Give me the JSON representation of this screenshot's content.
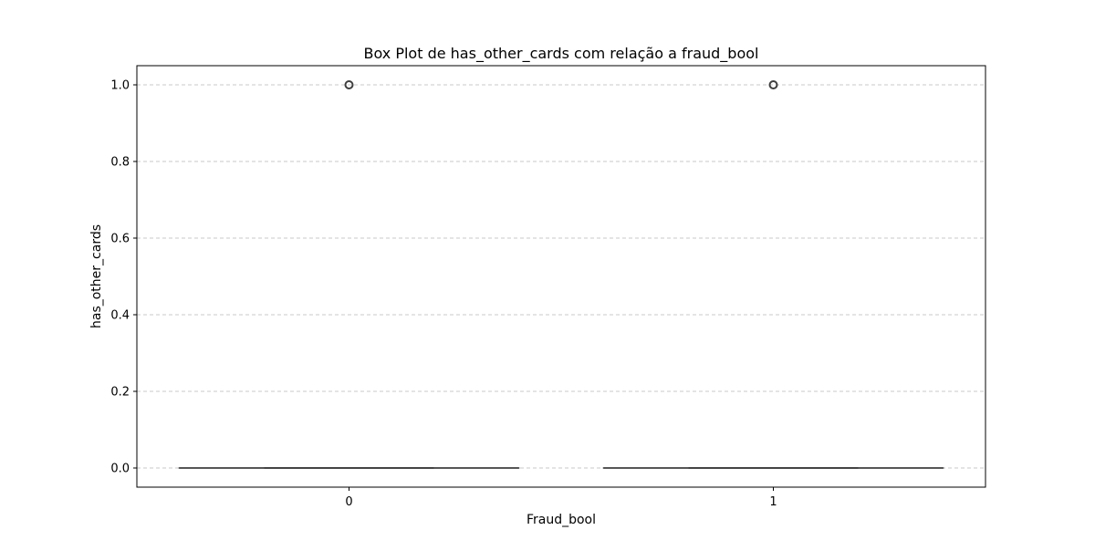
{
  "chart_data": {
    "type": "box",
    "title": "Box Plot de has_other_cards com relação a fraud_bool",
    "xlabel": "Fraud_bool",
    "ylabel": "has_other_cards",
    "categories": [
      "0",
      "1"
    ],
    "ylim": [
      -0.05,
      1.05
    ],
    "yticks": [
      0.0,
      0.2,
      0.4,
      0.6,
      0.8,
      1.0
    ],
    "ytick_labels": [
      "0.0",
      "0.2",
      "0.4",
      "0.6",
      "0.8",
      "1.0"
    ],
    "grid": {
      "y": true,
      "x": false,
      "style": "dashed"
    },
    "boxes": [
      {
        "category": "0",
        "whisker_low": 0.0,
        "q1": 0.0,
        "median": 0.0,
        "q3": 0.0,
        "whisker_high": 0.0,
        "outliers": [
          1.0
        ]
      },
      {
        "category": "1",
        "whisker_low": 0.0,
        "q1": 0.0,
        "median": 0.0,
        "q3": 0.0,
        "whisker_high": 0.0,
        "outliers": [
          1.0
        ]
      }
    ],
    "colors": {
      "box_line": "#3f3f3f",
      "grid": "#c8c8c8",
      "axes": "#000000",
      "outlier_edge": "#3f3f3f"
    }
  }
}
